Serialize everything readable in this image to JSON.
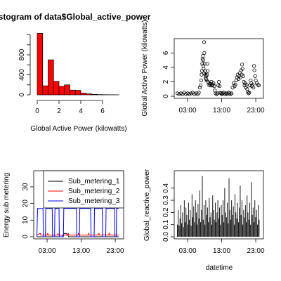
{
  "chart_data": [
    {
      "type": "bar",
      "title": "Histogram of data$Global_active_power",
      "xlabel": "Global Active Power (kilowatts)",
      "ylabel": "",
      "bins": [
        [
          0,
          0.5
        ],
        [
          0.5,
          1
        ],
        [
          1,
          1.5
        ],
        [
          1.5,
          2
        ],
        [
          2,
          2.5
        ],
        [
          2.5,
          3
        ],
        [
          3,
          3.5
        ],
        [
          3.5,
          4
        ],
        [
          4,
          4.5
        ],
        [
          4.5,
          5
        ],
        [
          5,
          5.5
        ],
        [
          5.5,
          6
        ],
        [
          6,
          6.5
        ],
        [
          6.5,
          7
        ],
        [
          7,
          7.5
        ]
      ],
      "values": [
        1230,
        180,
        700,
        270,
        170,
        200,
        95,
        90,
        35,
        20,
        10,
        5,
        3,
        2,
        1
      ],
      "xticks": [
        "0",
        "2",
        "4",
        "6"
      ],
      "yticks": [
        "0",
        "400",
        "800"
      ],
      "ylim": [
        0,
        1250
      ],
      "bar_color": "#ff0000"
    },
    {
      "type": "scatter",
      "title": "",
      "xlabel": "",
      "ylabel": "Global Active Power (kilowatts)",
      "xticks": [
        "03:00",
        "13:00",
        "23:00"
      ],
      "yticks": [
        "0",
        "2",
        "4",
        "6"
      ],
      "ylim": [
        0,
        7.5
      ],
      "x_unit": "hours since midnight (start of plotted day)",
      "marker": "open circle",
      "points": [
        [
          0.0,
          0.4
        ],
        [
          0.5,
          0.3
        ],
        [
          1.0,
          0.4
        ],
        [
          1.5,
          0.3
        ],
        [
          2.0,
          0.5
        ],
        [
          2.5,
          0.3
        ],
        [
          3.0,
          0.4
        ],
        [
          3.5,
          0.3
        ],
        [
          4.0,
          0.4
        ],
        [
          4.5,
          0.5
        ],
        [
          5.0,
          0.3
        ],
        [
          5.5,
          0.4
        ],
        [
          6.0,
          0.3
        ],
        [
          6.3,
          0.5
        ],
        [
          6.6,
          1.2
        ],
        [
          6.8,
          1.5
        ],
        [
          7.0,
          2.2
        ],
        [
          7.1,
          3.0
        ],
        [
          7.2,
          3.5
        ],
        [
          7.3,
          4.5
        ],
        [
          7.4,
          5.2
        ],
        [
          7.5,
          5.6
        ],
        [
          7.55,
          5.0
        ],
        [
          7.6,
          4.2
        ],
        [
          7.7,
          3.8
        ],
        [
          7.8,
          3.2
        ],
        [
          7.85,
          7.5
        ],
        [
          7.9,
          6.0
        ],
        [
          8.0,
          4.5
        ],
        [
          8.1,
          3.5
        ],
        [
          8.2,
          3.0
        ],
        [
          8.3,
          2.6
        ],
        [
          8.4,
          2.4
        ],
        [
          8.5,
          2.8
        ],
        [
          8.6,
          2.2
        ],
        [
          8.7,
          3.0
        ],
        [
          8.8,
          4.5
        ],
        [
          8.9,
          3.5
        ],
        [
          9.0,
          2.0
        ],
        [
          9.2,
          1.6
        ],
        [
          9.4,
          1.8
        ],
        [
          9.6,
          1.5
        ],
        [
          9.8,
          1.7
        ],
        [
          10.0,
          2.0
        ],
        [
          10.2,
          1.5
        ],
        [
          10.4,
          1.6
        ],
        [
          10.6,
          1.8
        ],
        [
          10.8,
          1.4
        ],
        [
          11.0,
          0.8
        ],
        [
          11.2,
          0.4
        ],
        [
          11.5,
          0.3
        ],
        [
          11.8,
          0.4
        ],
        [
          12.0,
          1.5
        ],
        [
          12.2,
          2.0
        ],
        [
          12.4,
          1.4
        ],
        [
          12.6,
          0.5
        ],
        [
          12.8,
          0.4
        ],
        [
          13.0,
          0.3
        ],
        [
          13.3,
          0.4
        ],
        [
          13.6,
          0.5
        ],
        [
          14.0,
          0.3
        ],
        [
          14.3,
          0.4
        ],
        [
          14.6,
          0.3
        ],
        [
          15.0,
          0.5
        ],
        [
          15.3,
          0.4
        ],
        [
          15.6,
          0.3
        ],
        [
          15.9,
          0.4
        ],
        [
          16.2,
          1.2
        ],
        [
          16.5,
          1.8
        ],
        [
          16.8,
          1.4
        ],
        [
          17.0,
          1.6
        ],
        [
          17.3,
          2.2
        ],
        [
          17.5,
          2.6
        ],
        [
          17.7,
          3.0
        ],
        [
          17.9,
          2.4
        ],
        [
          18.1,
          2.8
        ],
        [
          18.3,
          3.2
        ],
        [
          18.5,
          2.6
        ],
        [
          18.7,
          3.6
        ],
        [
          18.9,
          3.0
        ],
        [
          19.0,
          4.4
        ],
        [
          19.1,
          3.8
        ],
        [
          19.3,
          2.8
        ],
        [
          19.5,
          2.0
        ],
        [
          19.7,
          1.5
        ],
        [
          19.9,
          1.8
        ],
        [
          20.1,
          1.2
        ],
        [
          20.3,
          1.6
        ],
        [
          20.5,
          1.0
        ],
        [
          20.7,
          0.6
        ],
        [
          20.9,
          0.4
        ],
        [
          21.1,
          0.5
        ],
        [
          21.3,
          1.5
        ],
        [
          21.5,
          2.2
        ],
        [
          21.7,
          1.8
        ],
        [
          21.9,
          1.4
        ],
        [
          22.1,
          1.6
        ],
        [
          22.3,
          1.2
        ],
        [
          22.5,
          4.2
        ],
        [
          22.6,
          3.6
        ],
        [
          22.8,
          2.8
        ],
        [
          23.0,
          2.2
        ],
        [
          23.3,
          1.8
        ],
        [
          23.6,
          1.6
        ],
        [
          23.9,
          1.5
        ]
      ]
    },
    {
      "type": "line",
      "title": "",
      "xlabel": "",
      "ylabel": "Energy sub metering",
      "xticks": [
        "03:00",
        "13:00",
        "23:00"
      ],
      "yticks": [
        "0",
        "10",
        "20",
        "30"
      ],
      "ylim": [
        0,
        38
      ],
      "x_unit": "hours since midnight (start of plotted day)",
      "legend_position": "top-right",
      "series": [
        {
          "name": "Sub_metering_1",
          "color": "#000000",
          "points": [
            [
              0,
              0
            ],
            [
              7.5,
              0
            ],
            [
              7.7,
              1
            ],
            [
              8.0,
              2
            ],
            [
              8.5,
              2
            ],
            [
              9.0,
              1.5
            ],
            [
              9.3,
              0
            ],
            [
              24,
              0
            ]
          ]
        },
        {
          "name": "Sub_metering_2",
          "color": "#ff0000",
          "points": [
            [
              0,
              1
            ],
            [
              1,
              2
            ],
            [
              1.2,
              1
            ],
            [
              3,
              1
            ],
            [
              3.2,
              2
            ],
            [
              3.4,
              1
            ],
            [
              6,
              1
            ],
            [
              6.2,
              2
            ],
            [
              6.4,
              1
            ],
            [
              9,
              1
            ],
            [
              9.2,
              2
            ],
            [
              9.4,
              1
            ],
            [
              12,
              1
            ],
            [
              12.2,
              2
            ],
            [
              12.4,
              1
            ],
            [
              15,
              1
            ],
            [
              15.2,
              2
            ],
            [
              15.4,
              1
            ],
            [
              18,
              1
            ],
            [
              18.2,
              2
            ],
            [
              18.4,
              1
            ],
            [
              21,
              1
            ],
            [
              21.2,
              2
            ],
            [
              21.4,
              1
            ],
            [
              24,
              1
            ]
          ]
        },
        {
          "name": "Sub_metering_3",
          "color": "#0000ff",
          "points": [
            [
              0,
              0
            ],
            [
              0.2,
              17
            ],
            [
              1.8,
              17
            ],
            [
              1.9,
              0
            ],
            [
              2.5,
              0
            ],
            [
              2.6,
              17
            ],
            [
              4.5,
              17
            ],
            [
              4.6,
              0
            ],
            [
              5.2,
              0
            ],
            [
              5.3,
              17
            ],
            [
              6.5,
              17
            ],
            [
              6.6,
              0
            ],
            [
              7.8,
              0
            ],
            [
              7.9,
              17
            ],
            [
              11.6,
              17
            ],
            [
              11.7,
              0
            ],
            [
              12.5,
              0
            ],
            [
              12.6,
              17
            ],
            [
              15.8,
              17
            ],
            [
              15.9,
              0
            ],
            [
              16.8,
              0
            ],
            [
              16.9,
              17
            ],
            [
              19.2,
              17
            ],
            [
              19.3,
              0
            ],
            [
              20.2,
              0
            ],
            [
              20.3,
              17
            ],
            [
              22.8,
              17
            ],
            [
              22.9,
              0
            ],
            [
              23.3,
              0
            ],
            [
              23.4,
              17
            ],
            [
              24,
              17
            ]
          ]
        }
      ]
    },
    {
      "type": "bar",
      "title": "",
      "xlabel": "datetime",
      "ylabel": "Global_reactive_power",
      "xticks": [
        "03:00",
        "13:00",
        "23:00"
      ],
      "yticks": [
        "0.0",
        "0.1",
        "0.2",
        "0.3",
        "0.4"
      ],
      "ylim": [
        0,
        0.52
      ],
      "x_unit": "hours since midnight (start of plotted day)",
      "values": [
        0.1,
        0.22,
        0.09,
        0.15,
        0.26,
        0.11,
        0.2,
        0.08,
        0.3,
        0.12,
        0.24,
        0.18,
        0.1,
        0.28,
        0.14,
        0.22,
        0.09,
        0.35,
        0.16,
        0.25,
        0.12,
        0.3,
        0.2,
        0.1,
        0.27,
        0.15,
        0.38,
        0.12,
        0.22,
        0.5,
        0.14,
        0.26,
        0.1,
        0.3,
        0.18,
        0.24,
        0.12,
        0.32,
        0.16,
        0.2,
        0.1,
        0.34,
        0.22,
        0.14,
        0.28,
        0.12,
        0.2,
        0.3,
        0.15,
        0.24,
        0.1,
        0.26,
        0.18,
        0.3,
        0.12,
        0.4,
        0.2,
        0.16,
        0.28,
        0.11,
        0.48,
        0.22,
        0.14,
        0.3,
        0.18,
        0.25,
        0.1,
        0.35,
        0.2,
        0.15,
        0.28,
        0.12,
        0.24,
        0.42,
        0.18,
        0.3,
        0.1,
        0.22,
        0.16,
        0.26,
        0.12,
        0.34,
        0.2,
        0.14,
        0.28,
        0.1,
        0.45,
        0.18,
        0.24,
        0.12,
        0.3,
        0.16,
        0.22,
        0.1,
        0.26,
        0.14
      ]
    }
  ]
}
